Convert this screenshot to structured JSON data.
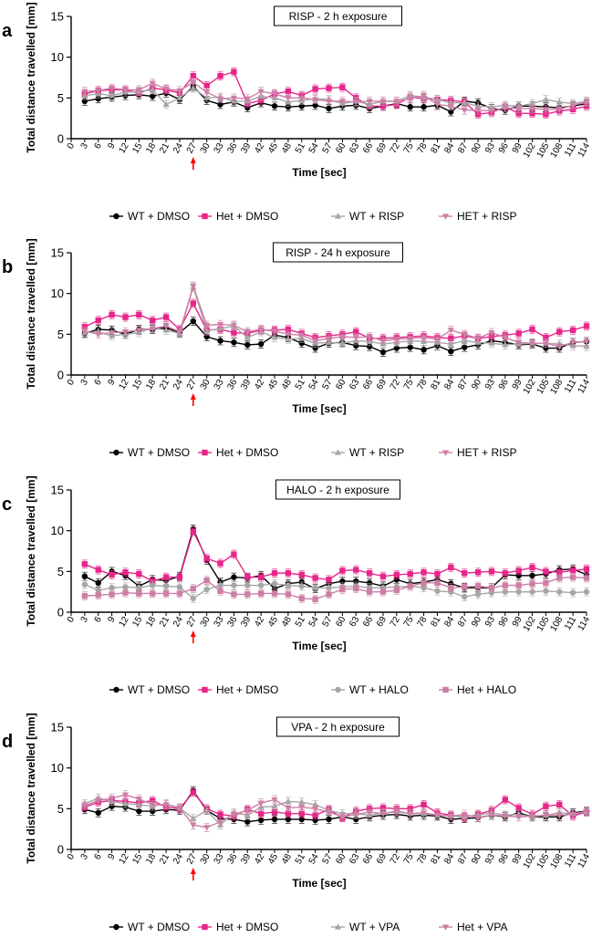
{
  "colors": {
    "wt_dmso": "#000000",
    "het_dmso": "#e6268a",
    "wt_drug": "#a6a6a6",
    "het_drug": "#cc7fa6",
    "arrow": "#ff0000"
  },
  "chart_data": [
    {
      "type": "line",
      "panel": "a",
      "title": "RISP - 2 h exposure",
      "xlabel": "Time [sec]",
      "ylabel": "Total distance travelled [mm]",
      "ylim": [
        0,
        15
      ],
      "yticks": [
        0,
        5,
        10,
        15
      ],
      "x": [
        0,
        3,
        6,
        9,
        12,
        15,
        18,
        21,
        24,
        27,
        30,
        33,
        36,
        39,
        42,
        45,
        48,
        51,
        54,
        57,
        60,
        63,
        66,
        69,
        72,
        75,
        78,
        81,
        84,
        87,
        90,
        93,
        96,
        99,
        102,
        105,
        108,
        111,
        114
      ],
      "arrow_at": 27,
      "series": [
        {
          "name": "WT + DMSO",
          "color_key": "wt_dmso",
          "marker": "circle",
          "values": [
            null,
            4.6,
            4.9,
            5.1,
            5.3,
            5.4,
            5.2,
            5.6,
            4.8,
            6.4,
            4.7,
            4.2,
            4.5,
            3.8,
            4.4,
            4.0,
            3.9,
            4.0,
            4.1,
            3.7,
            4.0,
            4.1,
            3.7,
            4.0,
            4.3,
            3.9,
            3.9,
            4.1,
            3.3,
            4.6,
            4.4,
            3.7,
            3.5,
            4.0,
            4.0,
            3.9,
            3.8,
            4.0,
            4.3
          ]
        },
        {
          "name": "Het + DMSO",
          "color_key": "het_dmso",
          "marker": "square",
          "values": [
            null,
            5.5,
            5.9,
            6.0,
            6.0,
            5.6,
            6.2,
            6.0,
            5.6,
            7.7,
            6.5,
            7.7,
            8.2,
            4.3,
            4.7,
            5.5,
            5.8,
            5.3,
            6.1,
            6.2,
            6.3,
            5.0,
            4.0,
            4.0,
            4.2,
            5.1,
            4.9,
            4.8,
            4.7,
            4.5,
            3.0,
            3.2,
            3.9,
            3.1,
            3.1,
            3.0,
            3.4,
            3.6,
            4.0
          ]
        },
        {
          "name": "WT + RISP",
          "color_key": "wt_drug",
          "marker": "triangle",
          "values": [
            null,
            5.3,
            5.5,
            5.3,
            5.7,
            5.8,
            6.0,
            4.2,
            5.0,
            6.2,
            5.0,
            5.1,
            4.6,
            4.6,
            5.2,
            5.0,
            4.5,
            4.7,
            4.9,
            4.8,
            4.3,
            4.6,
            4.2,
            4.6,
            4.6,
            5.3,
            5.1,
            4.8,
            4.4,
            4.4,
            4.0,
            3.9,
            4.1,
            4.0,
            4.3,
            4.8,
            4.5,
            4.3,
            4.6
          ]
        },
        {
          "name": "HET + RISP",
          "color_key": "het_drug",
          "marker": "tri-down",
          "values": [
            null,
            5.8,
            5.9,
            6.2,
            6.0,
            6.0,
            6.8,
            6.1,
            5.9,
            6.9,
            5.7,
            4.9,
            5.0,
            4.9,
            5.8,
            5.5,
            5.0,
            5.0,
            4.8,
            4.6,
            4.6,
            4.5,
            4.6,
            4.6,
            4.6,
            4.9,
            5.3,
            4.2,
            4.0,
            3.5,
            3.5,
            3.4,
            3.8,
            3.7,
            3.7,
            3.6,
            3.6,
            4.1,
            4.5
          ]
        }
      ]
    },
    {
      "type": "line",
      "panel": "b",
      "title": "RISP - 24 h exposure",
      "xlabel": "Time [sec]",
      "ylabel": "Total distance travelled [mm]",
      "ylim": [
        0,
        15
      ],
      "yticks": [
        0,
        5,
        10,
        15
      ],
      "x": [
        0,
        3,
        6,
        9,
        12,
        15,
        18,
        21,
        24,
        27,
        30,
        33,
        36,
        39,
        42,
        45,
        48,
        51,
        54,
        57,
        60,
        63,
        66,
        69,
        72,
        75,
        78,
        81,
        84,
        87,
        90,
        93,
        96,
        99,
        102,
        105,
        108,
        111,
        114
      ],
      "arrow_at": 27,
      "series": [
        {
          "name": "WT + DMSO",
          "color_key": "wt_dmso",
          "marker": "circle",
          "values": [
            null,
            5.1,
            5.6,
            5.5,
            5.0,
            5.6,
            5.6,
            5.8,
            5.2,
            6.6,
            4.7,
            4.2,
            4.0,
            3.7,
            3.8,
            4.9,
            4.6,
            3.9,
            3.3,
            3.9,
            4.0,
            3.6,
            3.5,
            2.8,
            3.3,
            3.4,
            3.1,
            3.6,
            2.9,
            3.4,
            3.7,
            4.2,
            4.0,
            3.7,
            3.8,
            3.3,
            3.3,
            4.0,
            4.1
          ]
        },
        {
          "name": "Het + DMSO",
          "color_key": "het_dmso",
          "marker": "square",
          "values": [
            null,
            5.9,
            6.7,
            7.4,
            7.1,
            7.4,
            6.7,
            7.1,
            5.6,
            8.8,
            5.5,
            5.6,
            5.2,
            5.1,
            5.5,
            5.5,
            5.6,
            5.1,
            4.6,
            4.8,
            5.0,
            5.3,
            4.5,
            4.5,
            4.6,
            4.7,
            4.8,
            4.6,
            4.5,
            4.8,
            4.5,
            4.7,
            4.9,
            5.1,
            5.6,
            4.6,
            5.3,
            5.5,
            6.0
          ]
        },
        {
          "name": "WT + RISP",
          "color_key": "wt_drug",
          "marker": "triangle",
          "values": [
            null,
            5.2,
            5.3,
            4.8,
            5.0,
            5.2,
            5.8,
            5.5,
            5.1,
            10.8,
            5.4,
            5.7,
            6.0,
            4.6,
            5.3,
            4.6,
            4.4,
            4.5,
            3.9,
            4.0,
            3.9,
            4.2,
            4.1,
            3.8,
            4.0,
            4.2,
            4.1,
            4.0,
            3.8,
            4.2,
            4.0,
            3.9,
            3.7,
            3.8,
            3.9,
            3.9,
            3.8,
            3.6,
            3.5
          ]
        },
        {
          "name": "HET + RISP",
          "color_key": "het_drug",
          "marker": "tri-down",
          "values": [
            null,
            5.4,
            5.0,
            5.2,
            5.3,
            5.5,
            5.7,
            6.0,
            5.3,
            10.9,
            6.1,
            6.2,
            6.1,
            5.3,
            5.6,
            5.4,
            5.0,
            4.9,
            4.2,
            4.5,
            4.7,
            4.6,
            4.7,
            4.2,
            4.4,
            4.5,
            4.6,
            4.4,
            5.5,
            5.0,
            4.5,
            5.2,
            4.6,
            4.0,
            3.9,
            3.9,
            3.5,
            4.0,
            4.1
          ]
        }
      ]
    },
    {
      "type": "line",
      "panel": "c",
      "title": "HALO - 2 h exposure",
      "xlabel": "Time [sec]",
      "ylabel": "Total distance travelled [mm]",
      "ylim": [
        0,
        15
      ],
      "yticks": [
        0,
        5,
        10,
        15
      ],
      "x": [
        0,
        3,
        6,
        9,
        12,
        15,
        18,
        21,
        24,
        27,
        30,
        33,
        36,
        39,
        42,
        45,
        48,
        51,
        54,
        57,
        60,
        63,
        66,
        69,
        72,
        75,
        78,
        81,
        84,
        87,
        90,
        93,
        96,
        99,
        102,
        105,
        108,
        111,
        114
      ],
      "arrow_at": 27,
      "series": [
        {
          "name": "WT + DMSO",
          "color_key": "wt_dmso",
          "marker": "circle",
          "values": [
            null,
            4.4,
            3.6,
            5.0,
            4.5,
            3.2,
            4.0,
            3.9,
            4.4,
            10.2,
            6.4,
            3.7,
            4.3,
            4.2,
            4.5,
            2.9,
            3.5,
            3.7,
            2.9,
            3.5,
            3.8,
            3.8,
            3.6,
            3.2,
            4.0,
            3.5,
            3.7,
            4.0,
            3.5,
            3.0,
            3.0,
            3.0,
            4.6,
            4.5,
            4.5,
            4.7,
            5.2,
            5.3,
            4.6
          ]
        },
        {
          "name": "Het + DMSO",
          "color_key": "het_dmso",
          "marker": "square",
          "values": [
            null,
            5.9,
            5.2,
            4.6,
            4.9,
            4.7,
            3.8,
            4.3,
            4.3,
            9.9,
            6.6,
            6.0,
            7.1,
            4.3,
            4.3,
            4.8,
            4.8,
            4.6,
            4.2,
            4.0,
            5.1,
            5.2,
            4.8,
            4.4,
            4.6,
            4.7,
            4.9,
            4.7,
            5.5,
            4.8,
            4.9,
            5.0,
            4.8,
            5.1,
            5.5,
            5.0,
            4.9,
            5.1,
            5.3
          ]
        },
        {
          "name": "WT + HALO",
          "color_key": "wt_drug",
          "marker": "circle",
          "values": [
            null,
            3.4,
            2.7,
            3.0,
            3.1,
            3.0,
            3.3,
            3.2,
            3.1,
            1.7,
            2.8,
            3.3,
            3.3,
            3.3,
            3.3,
            3.5,
            3.3,
            3.2,
            3.0,
            3.0,
            3.1,
            3.2,
            3.0,
            3.0,
            3.1,
            3.2,
            3.0,
            2.6,
            2.5,
            1.9,
            2.2,
            2.4,
            2.5,
            2.5,
            2.5,
            2.6,
            2.5,
            2.4,
            2.5
          ]
        },
        {
          "name": "Het + HALO",
          "color_key": "het_drug",
          "marker": "square",
          "values": [
            null,
            2.0,
            2.1,
            2.2,
            2.4,
            2.3,
            2.3,
            2.3,
            2.3,
            2.9,
            3.9,
            2.6,
            2.2,
            2.2,
            2.3,
            2.3,
            2.2,
            1.7,
            1.6,
            2.2,
            2.8,
            2.9,
            2.5,
            2.5,
            2.7,
            3.2,
            3.6,
            3.6,
            3.0,
            3.1,
            3.2,
            3.0,
            3.3,
            3.3,
            3.5,
            3.6,
            4.2,
            4.3,
            4.2
          ]
        }
      ]
    },
    {
      "type": "line",
      "panel": "d",
      "title": "VPA - 2 h exposure",
      "xlabel": "Time [sec]",
      "ylabel": "Total distance travelled [mm]",
      "ylim": [
        0,
        15
      ],
      "yticks": [
        0,
        5,
        10,
        15
      ],
      "x": [
        0,
        3,
        6,
        9,
        12,
        15,
        18,
        21,
        24,
        27,
        30,
        33,
        36,
        39,
        42,
        45,
        48,
        51,
        54,
        57,
        60,
        63,
        66,
        69,
        72,
        75,
        78,
        81,
        84,
        87,
        90,
        93,
        96,
        99,
        102,
        105,
        108,
        111,
        114
      ],
      "arrow_at": 27,
      "series": [
        {
          "name": "WT + DMSO",
          "color_key": "wt_dmso",
          "marker": "circle",
          "values": [
            null,
            4.9,
            4.5,
            5.3,
            5.2,
            4.7,
            4.7,
            4.9,
            4.8,
            7.2,
            4.8,
            3.8,
            3.7,
            3.4,
            3.6,
            3.7,
            3.7,
            3.7,
            3.6,
            3.7,
            4.0,
            3.7,
            4.0,
            4.2,
            4.3,
            4.1,
            4.2,
            4.1,
            3.7,
            3.8,
            3.9,
            4.2,
            4.0,
            4.5,
            4.0,
            4.0,
            4.0,
            4.5,
            4.7
          ]
        },
        {
          "name": "Het + DMSO",
          "color_key": "het_dmso",
          "marker": "square",
          "values": [
            null,
            5.2,
            5.8,
            6.0,
            5.9,
            5.7,
            6.0,
            5.2,
            5.0,
            7.0,
            5.0,
            4.3,
            4.1,
            4.9,
            4.4,
            4.6,
            4.4,
            4.4,
            4.2,
            4.9,
            3.9,
            4.7,
            5.0,
            5.1,
            5.0,
            5.0,
            5.5,
            4.5,
            4.2,
            3.9,
            4.3,
            4.8,
            6.1,
            5.1,
            4.3,
            5.3,
            5.5,
            4.1,
            4.6
          ]
        },
        {
          "name": "WT + VPA",
          "color_key": "wt_drug",
          "marker": "triangle",
          "values": [
            null,
            5.6,
            6.3,
            5.9,
            5.6,
            5.5,
            5.3,
            5.6,
            5.1,
            3.8,
            4.8,
            3.0,
            4.5,
            4.2,
            5.2,
            5.3,
            5.9,
            5.8,
            5.5,
            4.8,
            4.4,
            4.4,
            4.2,
            4.5,
            4.6,
            4.4,
            4.4,
            4.2,
            4.1,
            4.0,
            4.2,
            4.5,
            4.2,
            4.3,
            4.0,
            4.2,
            4.5,
            4.4,
            4.6
          ]
        },
        {
          "name": "Het + VPA",
          "color_key": "het_drug",
          "marker": "tri-down",
          "values": [
            null,
            5.4,
            6.0,
            6.3,
            6.7,
            6.2,
            5.5,
            5.5,
            5.1,
            3.0,
            2.7,
            3.4,
            4.3,
            4.8,
            5.7,
            6.1,
            5.1,
            5.2,
            5.0,
            4.6,
            4.0,
            4.3,
            4.6,
            4.4,
            4.7,
            4.4,
            4.5,
            4.2,
            4.1,
            4.3,
            3.9,
            4.2,
            4.1,
            4.0,
            4.1,
            4.2,
            4.2,
            4.3,
            4.7
          ]
        }
      ]
    }
  ]
}
